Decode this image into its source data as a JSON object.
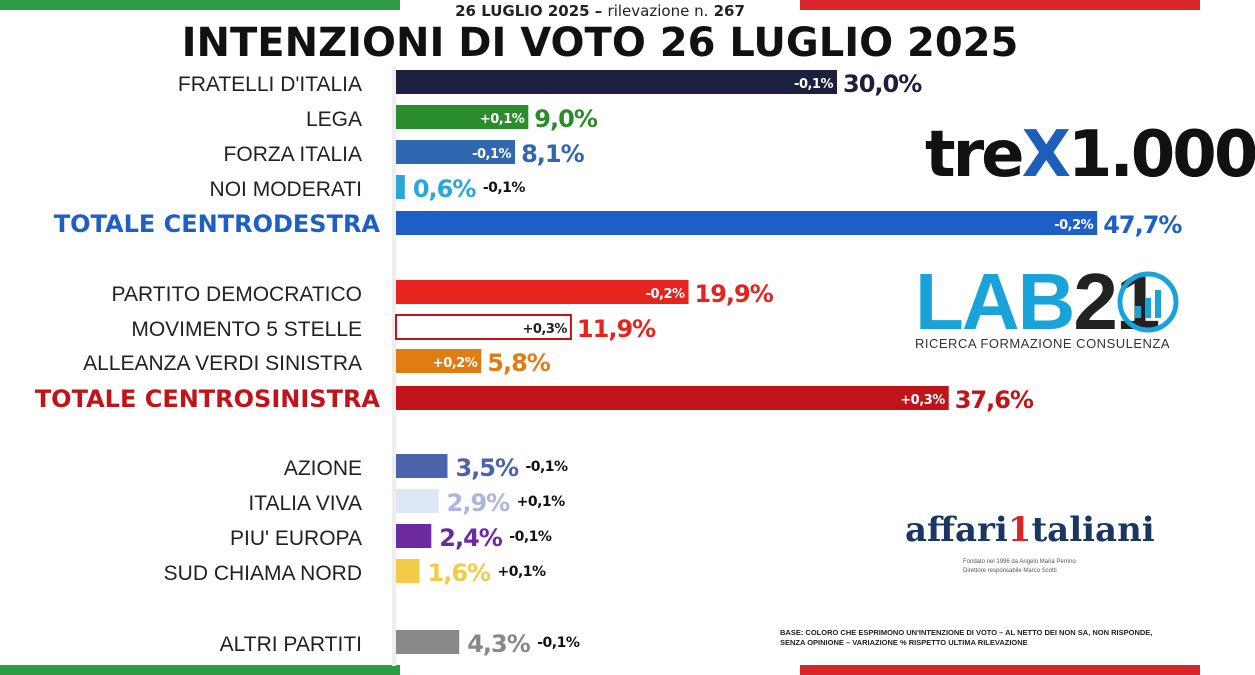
{
  "header": {
    "survey_date": "26 LUGLIO 2025 –",
    "survey_label": "rilevazione n.",
    "survey_number": "267",
    "title": "INTENZIONI DI VOTO 26 LUGLIO 2025"
  },
  "logos": {
    "tre_part1": "tre",
    "tre_x": "X",
    "tre_part2": "1.000",
    "lab_part1": "LAB",
    "lab_part2": "21",
    "lab_sub": "RICERCA FORMAZIONE CONSULENZA",
    "affari_part1": "affari",
    "affari_one": "1",
    "affari_part2": "taliani",
    "affari_sub1": "Fondato nel 1996 da Angelo Maria Perrino",
    "affari_sub2": "Direttore responsabile Marco Scotti"
  },
  "footnote": "BASE: COLORO CHE ESPRIMONO UN'INTENZIONE DI VOTO – AL NETTO DEI NON SA, NON RISPONDE, SENZA OPINIONE – VARIAZIONE % RISPETTO ULTIMA RILEVAZIONE",
  "colors": {
    "fdi": "#1c1f3d",
    "lega": "#2a8c2a",
    "fi": "#2f68b0",
    "nm": "#2aa7d6",
    "cdx": "#1d5fc4",
    "pd": "#e5231f",
    "m5s": "#ffffff",
    "avs": "#e07d12",
    "csx": "#c0141a",
    "azione": "#4a63aa",
    "iv": "#dce6f5",
    "pe": "#6c2aa0",
    "scn": "#f2cb48",
    "altri": "#888888"
  },
  "chart_data": {
    "type": "bar",
    "orientation": "horizontal",
    "title": "INTENZIONI DI VOTO 26 LUGLIO 2025",
    "unit": "%",
    "categories": [
      "FRATELLI D'ITALIA",
      "LEGA",
      "FORZA ITALIA",
      "NOI MODERATI",
      "TOTALE CENTRODESTRA",
      "PARTITO DEMOCRATICO",
      "MOVIMENTO 5 STELLE",
      "ALLEANZA VERDI SINISTRA",
      "TOTALE CENTROSINISTRA",
      "AZIONE",
      "ITALIA VIVA",
      "PIU' EUROPA",
      "SUD CHIAMA NORD",
      "ALTRI PARTITI"
    ],
    "values": [
      30.0,
      9.0,
      8.1,
      0.6,
      47.7,
      19.9,
      11.9,
      5.8,
      37.6,
      3.5,
      2.9,
      2.4,
      1.6,
      4.3
    ],
    "value_labels": [
      "30,0%",
      "9,0%",
      "8,1%",
      "0,6%",
      "47,7%",
      "19,9%",
      "11,9%",
      "5,8%",
      "37,6%",
      "3,5%",
      "2,9%",
      "2,4%",
      "1,6%",
      "4,3%"
    ],
    "changes": [
      -0.1,
      0.1,
      -0.1,
      -0.1,
      -0.2,
      -0.2,
      0.3,
      0.2,
      0.3,
      -0.1,
      0.1,
      -0.1,
      0.1,
      -0.1
    ],
    "change_labels": [
      "-0,1%",
      "+0,1%",
      "-0,1%",
      "-0,1%",
      "-0,2%",
      "-0,2%",
      "+0,3%",
      "+0,2%",
      "+0,3%",
      "-0,1%",
      "+0,1%",
      "-0,1%",
      "+0,1%",
      "-0,1%"
    ],
    "groups": [
      "centrodestra",
      "centrodestra",
      "centrodestra",
      "centrodestra",
      "total-cdx",
      "centrosinistra",
      "centrosinistra",
      "centrosinistra",
      "total-csx",
      "other",
      "other",
      "other",
      "other",
      "other"
    ],
    "bar_colors": [
      "#1c1f3d",
      "#2a8c2a",
      "#2f68b0",
      "#2aa7d6",
      "#1d5fc4",
      "#e5231f",
      "#ffffff",
      "#e07d12",
      "#c0141a",
      "#4a63aa",
      "#dce6f5",
      "#6c2aa0",
      "#f2cb48",
      "#888888"
    ],
    "label_colors": [
      "#1c1f3d",
      "#2a8c2a",
      "#2f68b0",
      "#2aa7d6",
      "#1d5fc4",
      "#e5231f",
      "#e5231f",
      "#e07d12",
      "#c0141a",
      "#4a63aa",
      "#a9b6e0",
      "#6c2aa0",
      "#f2cb48",
      "#888888"
    ],
    "category_label_colors": [
      "#222222",
      "#222222",
      "#222222",
      "#222222",
      "#1d5fc4",
      "#222222",
      "#222222",
      "#222222",
      "#c0141a",
      "#222222",
      "#222222",
      "#222222",
      "#222222",
      "#222222"
    ],
    "change_inside_bar": [
      true,
      true,
      true,
      false,
      true,
      true,
      true,
      true,
      true,
      false,
      false,
      false,
      false,
      false
    ],
    "bar_outlined": [
      false,
      false,
      false,
      false,
      false,
      false,
      true,
      false,
      false,
      false,
      false,
      false,
      false,
      false
    ]
  }
}
